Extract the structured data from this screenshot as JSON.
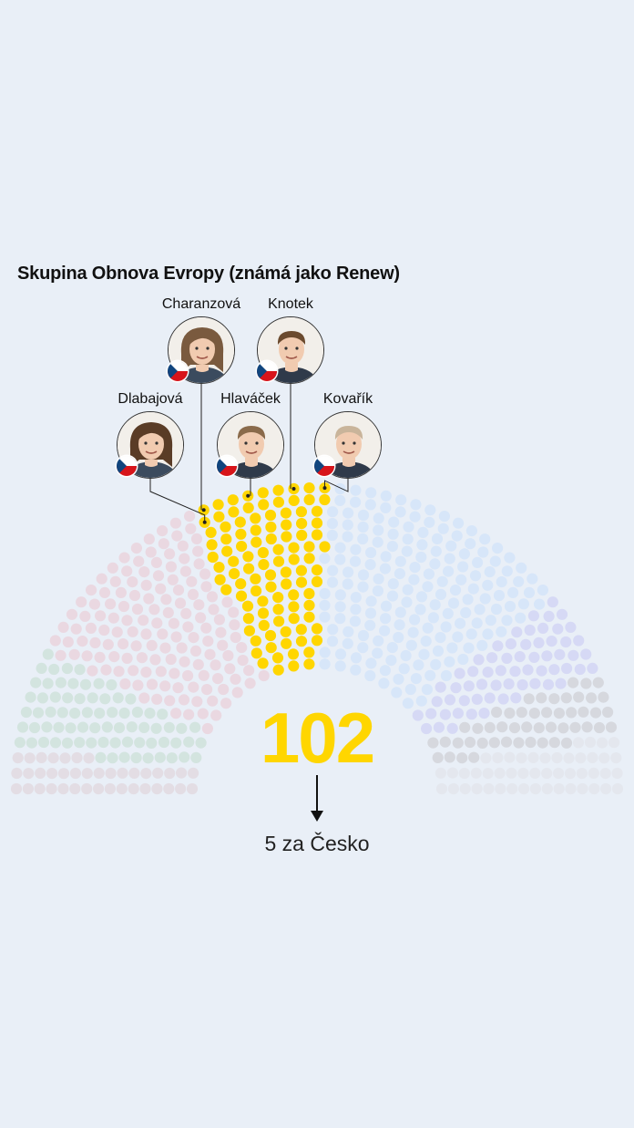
{
  "title": "Skupina Obnova Evropy (známá jako Renew)",
  "highlight": {
    "count": "102",
    "sub_caption": "5 za Česko",
    "color": "#ffd600"
  },
  "meps": [
    {
      "name": "Charanzová",
      "country": "CZ",
      "gender": "f",
      "hair": "#7a5a3e"
    },
    {
      "name": "Knotek",
      "country": "CZ",
      "gender": "m",
      "hair": "#6b4a2e"
    },
    {
      "name": "Dlabajová",
      "country": "CZ",
      "gender": "f",
      "hair": "#5a3c26"
    },
    {
      "name": "Hlaváček",
      "country": "CZ",
      "gender": "m",
      "hair": "#8a6a4a"
    },
    {
      "name": "Kovařík",
      "country": "CZ",
      "gender": "m",
      "hair": "#c9b49a"
    }
  ],
  "chart_data": {
    "type": "parliament",
    "total_seats": 705,
    "groups": [
      {
        "key": "left",
        "seats": 39,
        "color": "#e3dde4"
      },
      {
        "key": "greens",
        "seats": 73,
        "color": "#d3e4df"
      },
      {
        "key": "socialists",
        "seats": 145,
        "color": "#ead8e1"
      },
      {
        "key": "renew",
        "seats": 102,
        "color": "#ffd600",
        "highlight": true
      },
      {
        "key": "epp",
        "seats": 187,
        "color": "#d7e6f9"
      },
      {
        "key": "ecr",
        "seats": 62,
        "color": "#d6d9f5"
      },
      {
        "key": "id",
        "seats": 49,
        "color": "#d6d8de"
      },
      {
        "key": "non-attached",
        "seats": 48,
        "color": "#e4e7ee"
      }
    ]
  }
}
